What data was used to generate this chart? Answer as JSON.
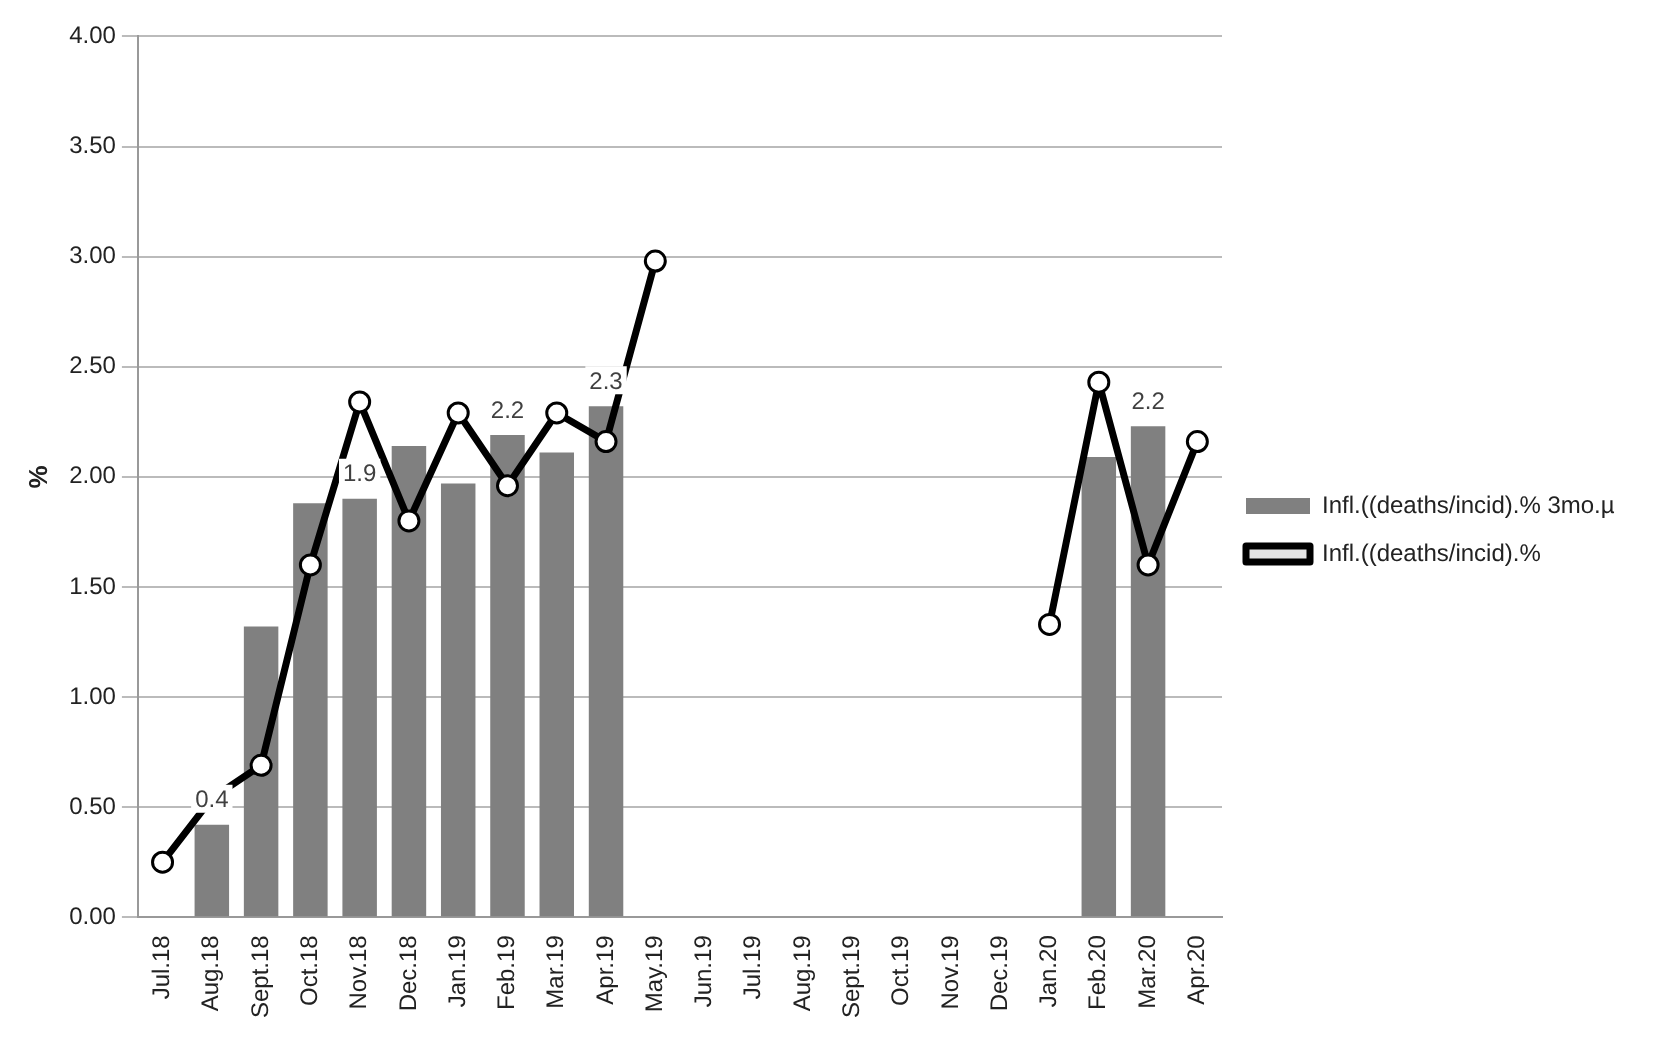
{
  "chart_data": {
    "type": "bar",
    "ylabel": "%",
    "categories": [
      "Jul.18",
      "Aug.18",
      "Sept.18",
      "Oct.18",
      "Nov.18",
      "Dec.18",
      "Jan.19",
      "Feb.19",
      "Mar.19",
      "Apr.19",
      "May.19",
      "Jun.19",
      "Jul.19",
      "Aug.19",
      "Sept.19",
      "Oct.19",
      "Nov.19",
      "Dec.19",
      "Jan.20",
      "Feb.20",
      "Mar.20",
      "Apr.20"
    ],
    "series": [
      {
        "name": "Infl.((deaths/incid).% 3mo.µ",
        "color": "#808080",
        "values": [
          null,
          0.42,
          1.32,
          1.88,
          1.9,
          2.14,
          1.97,
          2.19,
          2.11,
          2.32,
          null,
          null,
          null,
          null,
          null,
          null,
          null,
          null,
          null,
          2.09,
          2.23,
          null
        ],
        "value_labels": [
          null,
          "0.4",
          null,
          null,
          "1.9",
          null,
          null,
          "2.2",
          null,
          "2.3",
          null,
          null,
          null,
          null,
          null,
          null,
          null,
          null,
          null,
          null,
          "2.2",
          null
        ]
      },
      {
        "name": "Infl.((deaths/incid).%",
        "type": "line",
        "color": "#000000",
        "marker": "circle",
        "line_style": "solid",
        "values": [
          0.25,
          0.54,
          0.69,
          1.6,
          2.34,
          1.8,
          2.29,
          1.96,
          2.29,
          2.16,
          2.98,
          null,
          null,
          null,
          null,
          null,
          null,
          null,
          1.33,
          2.43,
          1.6,
          2.16
        ]
      }
    ],
    "ylim": [
      0,
      4
    ],
    "yticks": [
      {
        "value": 0,
        "label": "0.00"
      },
      {
        "value": 0.5,
        "label": "0.50"
      },
      {
        "value": 1,
        "label": "1.00"
      },
      {
        "value": 1.5,
        "label": "1.50"
      },
      {
        "value": 2,
        "label": "2.00"
      },
      {
        "value": 2.5,
        "label": "2.50"
      },
      {
        "value": 3,
        "label": "3.00"
      },
      {
        "value": 3.5,
        "label": "3.50"
      },
      {
        "value": 4,
        "label": "4.00"
      }
    ],
    "grid": "y",
    "legend": "right"
  }
}
